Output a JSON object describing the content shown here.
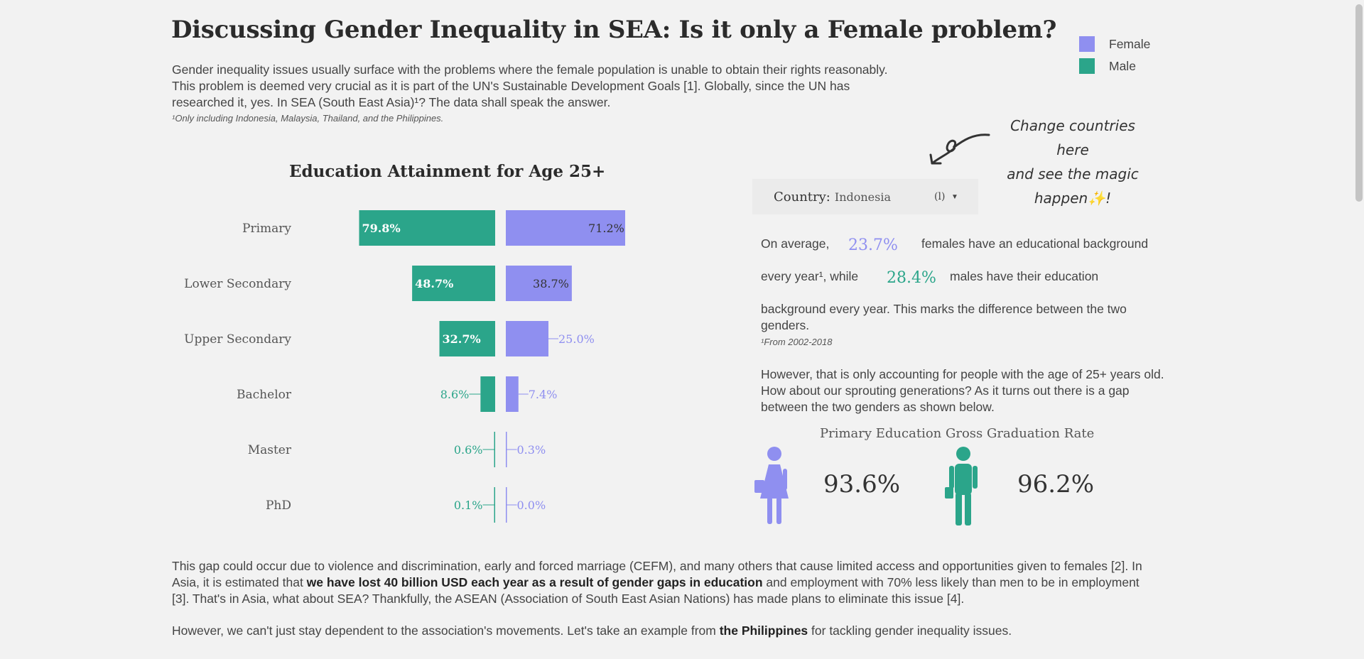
{
  "header": {
    "title": "Discussing Gender Inequality in SEA: Is it only a Female problem?",
    "intro_line1": "Gender inequality issues usually surface with the problems where the female population is unable to obtain their rights reasonably.",
    "intro_line2": "This problem is deemed very crucial as it is part of the UN's Sustainable Development Goals [1]. Globally, since the UN has",
    "intro_line3": "researched it, yes. In SEA (South East Asia)¹? The data shall speak the answer.",
    "footnote": "¹Only including Indonesia, Malaysia, Thailand, and the Philippines."
  },
  "legend": {
    "female_label": "Female",
    "male_label": "Male",
    "female_color": "#8f8ff0",
    "male_color": "#2ba58a"
  },
  "annotation": {
    "line1": "Change countries here",
    "line2": "and see the magic",
    "line3": "happen✨!"
  },
  "filter": {
    "label": "Country:",
    "value": "Indonesia",
    "all_indicator": "(l)",
    "caret_icon": "caret-down-icon"
  },
  "chart_data": {
    "type": "bar",
    "title": "Education Attainment for Age 25+",
    "categories": [
      "Primary",
      "Lower Secondary",
      "Upper Secondary",
      "Bachelor",
      "Master",
      "PhD"
    ],
    "series": [
      {
        "name": "Male",
        "values": [
          79.8,
          48.7,
          32.7,
          8.6,
          0.6,
          0.1
        ],
        "color": "#2ba58a"
      },
      {
        "name": "Female",
        "values": [
          71.2,
          38.7,
          25.0,
          7.4,
          0.3,
          0.0
        ],
        "color": "#8f8ff0"
      }
    ],
    "value_labels": {
      "male": [
        "79.8%",
        "48.7%",
        "32.7%",
        "8.6%",
        "0.6%",
        "0.1%"
      ],
      "female": [
        "71.2%",
        "38.7%",
        "25.0%",
        "7.4%",
        "0.3%",
        "0.0%"
      ]
    },
    "unit": "%"
  },
  "summary": {
    "p1_part1": "On average,",
    "female_avg": "23.7%",
    "p1_part2": "females have an educational background",
    "p1_part3": "every year¹, while",
    "male_avg": "28.4%",
    "p1_part4": "males have their education",
    "p1_part5": "background every year. This marks the difference between the two",
    "p1_part6": "genders.",
    "period_note": "¹From 2002-2018",
    "p2_line1": "However, that is only accounting for people with the age of 25+ years old.",
    "p2_line2": "How about our sprouting generations? As it turns out there is a gap",
    "p2_line3": "between the two genders as shown below."
  },
  "graduation": {
    "title": "Primary Education Gross Graduation Rate",
    "female_rate": "93.6%",
    "male_rate": "96.2%",
    "female_icon": "female-student-icon",
    "male_icon": "male-student-icon"
  },
  "bottom": {
    "p1_a": "This gap could occur due to violence and discrimination, early and forced marriage (CEFM), and many others that cause limited access and opportunities given to females [2]. In Asia, it is estimated that ",
    "p1_bold": "we have lost 40 billion USD each year as a result of gender gaps in education",
    "p1_b": " and employment with 70% less likely than men to be in employment [3]. That's in Asia, what about SEA? Thankfully, the ASEAN (Association of South East Asian Nations) has made plans to eliminate this issue [4].",
    "p2_a": "However, we can't just stay dependent to the association's movements. Let's take an example from ",
    "p2_bold": "the Philippines",
    "p2_b": " for tackling gender inequality issues."
  }
}
